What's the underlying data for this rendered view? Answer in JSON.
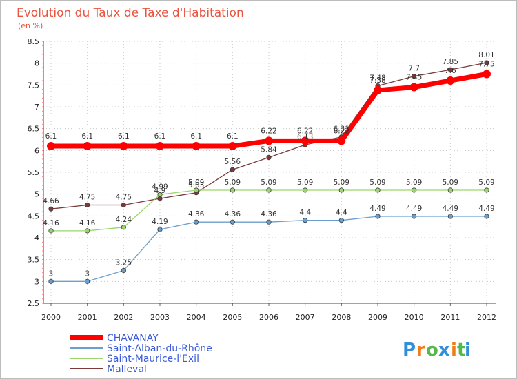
{
  "chart_data": {
    "type": "line",
    "title": "Evolution du Taux de Taxe d'Habitation",
    "subtitle": "(en %)",
    "xlabel": "",
    "ylabel": "",
    "x": [
      "2000",
      "2001",
      "2002",
      "2003",
      "2004",
      "2005",
      "2006",
      "2007",
      "2008",
      "2009",
      "2010",
      "2011",
      "2012"
    ],
    "ylim": [
      2.5,
      8.5
    ],
    "yticks": [
      "2.5",
      "3",
      "3.5",
      "4",
      "4.5",
      "5",
      "5.5",
      "6",
      "6.5",
      "7",
      "7.5",
      "8",
      "8.5"
    ],
    "grid": "dotted",
    "legend_position": "bottom-left",
    "series": [
      {
        "name": "CHAVANAY",
        "color": "#ff0000",
        "values": [
          6.1,
          6.1,
          6.1,
          6.1,
          6.1,
          6.1,
          6.22,
          6.22,
          6.22,
          7.38,
          7.45,
          7.6,
          7.75
        ],
        "labels": [
          "6.1",
          "6.1",
          "6.1",
          "6.1",
          "6.1",
          "6.1",
          "6.22",
          "6.22",
          "6.22",
          "7.38",
          "7.45",
          "7.6",
          "7.75"
        ]
      },
      {
        "name": "Saint-Alban-du-Rhône",
        "color": "#6a9fcf",
        "values": [
          3,
          3,
          3.25,
          4.19,
          4.36,
          4.36,
          4.36,
          4.4,
          4.4,
          4.49,
          4.49,
          4.49,
          4.49
        ],
        "labels": [
          "3",
          "3",
          "3.25",
          "4.19",
          "4.36",
          "4.36",
          "4.36",
          "4.4",
          "4.4",
          "4.49",
          "4.49",
          "4.49",
          "4.49"
        ]
      },
      {
        "name": "Saint-Maurice-l'Exil",
        "color": "#9ad66b",
        "values": [
          4.16,
          4.16,
          4.24,
          4.99,
          5.09,
          5.09,
          5.09,
          5.09,
          5.09,
          5.09,
          5.09,
          5.09,
          5.09
        ],
        "labels": [
          "4.16",
          "4.16",
          "4.24",
          "4.99",
          "5.09",
          "5.09",
          "5.09",
          "5.09",
          "5.09",
          "5.09",
          "5.09",
          "5.09",
          "5.09"
        ]
      },
      {
        "name": "Malleval",
        "color": "#7a3a3a",
        "values": [
          4.66,
          4.75,
          4.75,
          4.9,
          5.03,
          5.56,
          5.84,
          6.13,
          6.31,
          7.48,
          7.7,
          7.85,
          8.01
        ],
        "labels": [
          "4.66",
          "4.75",
          "4.75",
          "4.9",
          "5.03",
          "5.56",
          "5.84",
          "6.13",
          "6.31",
          "7.48",
          "7.7",
          "7.85",
          "8.01"
        ]
      }
    ]
  },
  "brand": {
    "letters": [
      "P",
      "r",
      "o",
      "x",
      "i",
      "t",
      "i"
    ],
    "colors": [
      "#2f8fd8",
      "#f07d1a",
      "#55b84a",
      "#2f8fd8",
      "#f07d1a",
      "#55b84a",
      "#2f8fd8"
    ]
  }
}
